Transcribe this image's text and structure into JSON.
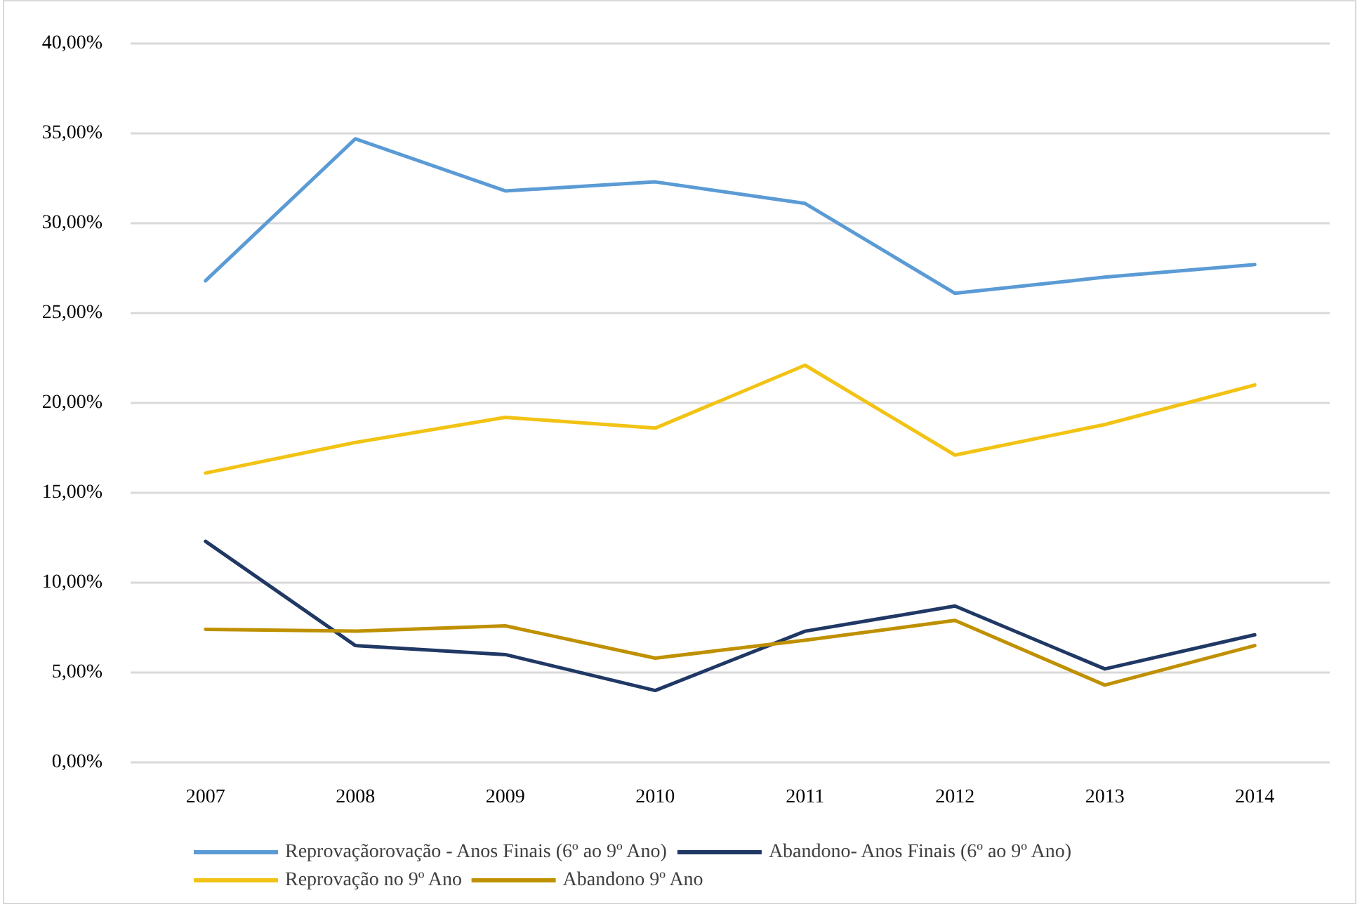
{
  "chart_data": {
    "type": "line",
    "categories": [
      "2007",
      "2008",
      "2009",
      "2010",
      "2011",
      "2012",
      "2013",
      "2014"
    ],
    "series": [
      {
        "name": "Reprovaçãorovação - Anos Finais (6º ao 9º Ano)",
        "color": "#5b9bd5",
        "values": [
          26.8,
          34.7,
          31.8,
          32.3,
          31.1,
          26.1,
          27.0,
          27.7
        ]
      },
      {
        "name": "Abandono- Anos Finais (6º ao 9º Ano)",
        "color": "#203864",
        "values": [
          12.3,
          6.5,
          6.0,
          4.0,
          7.3,
          8.7,
          5.2,
          7.1
        ]
      },
      {
        "name": "Reprovação no 9º Ano",
        "color": "#f2c314",
        "values": [
          16.1,
          17.8,
          19.2,
          18.6,
          22.1,
          17.1,
          18.8,
          21.0
        ]
      },
      {
        "name": "Abandono 9º Ano",
        "color": "#bf9000",
        "values": [
          7.4,
          7.3,
          7.6,
          5.8,
          6.8,
          7.9,
          4.3,
          6.5
        ]
      }
    ],
    "ylim": [
      0,
      40
    ],
    "yticks": [
      {
        "value": 0,
        "label": "0,00%"
      },
      {
        "value": 5,
        "label": "5,00%"
      },
      {
        "value": 10,
        "label": "10,00%"
      },
      {
        "value": 15,
        "label": "15,00%"
      },
      {
        "value": 20,
        "label": "20,00%"
      },
      {
        "value": 25,
        "label": "25,00%"
      },
      {
        "value": 30,
        "label": "30,00%"
      },
      {
        "value": 35,
        "label": "35,00%"
      },
      {
        "value": 40,
        "label": "40,00%"
      }
    ],
    "grid": "y",
    "legend": "bottom",
    "marker": "none",
    "line_style": "solid"
  }
}
